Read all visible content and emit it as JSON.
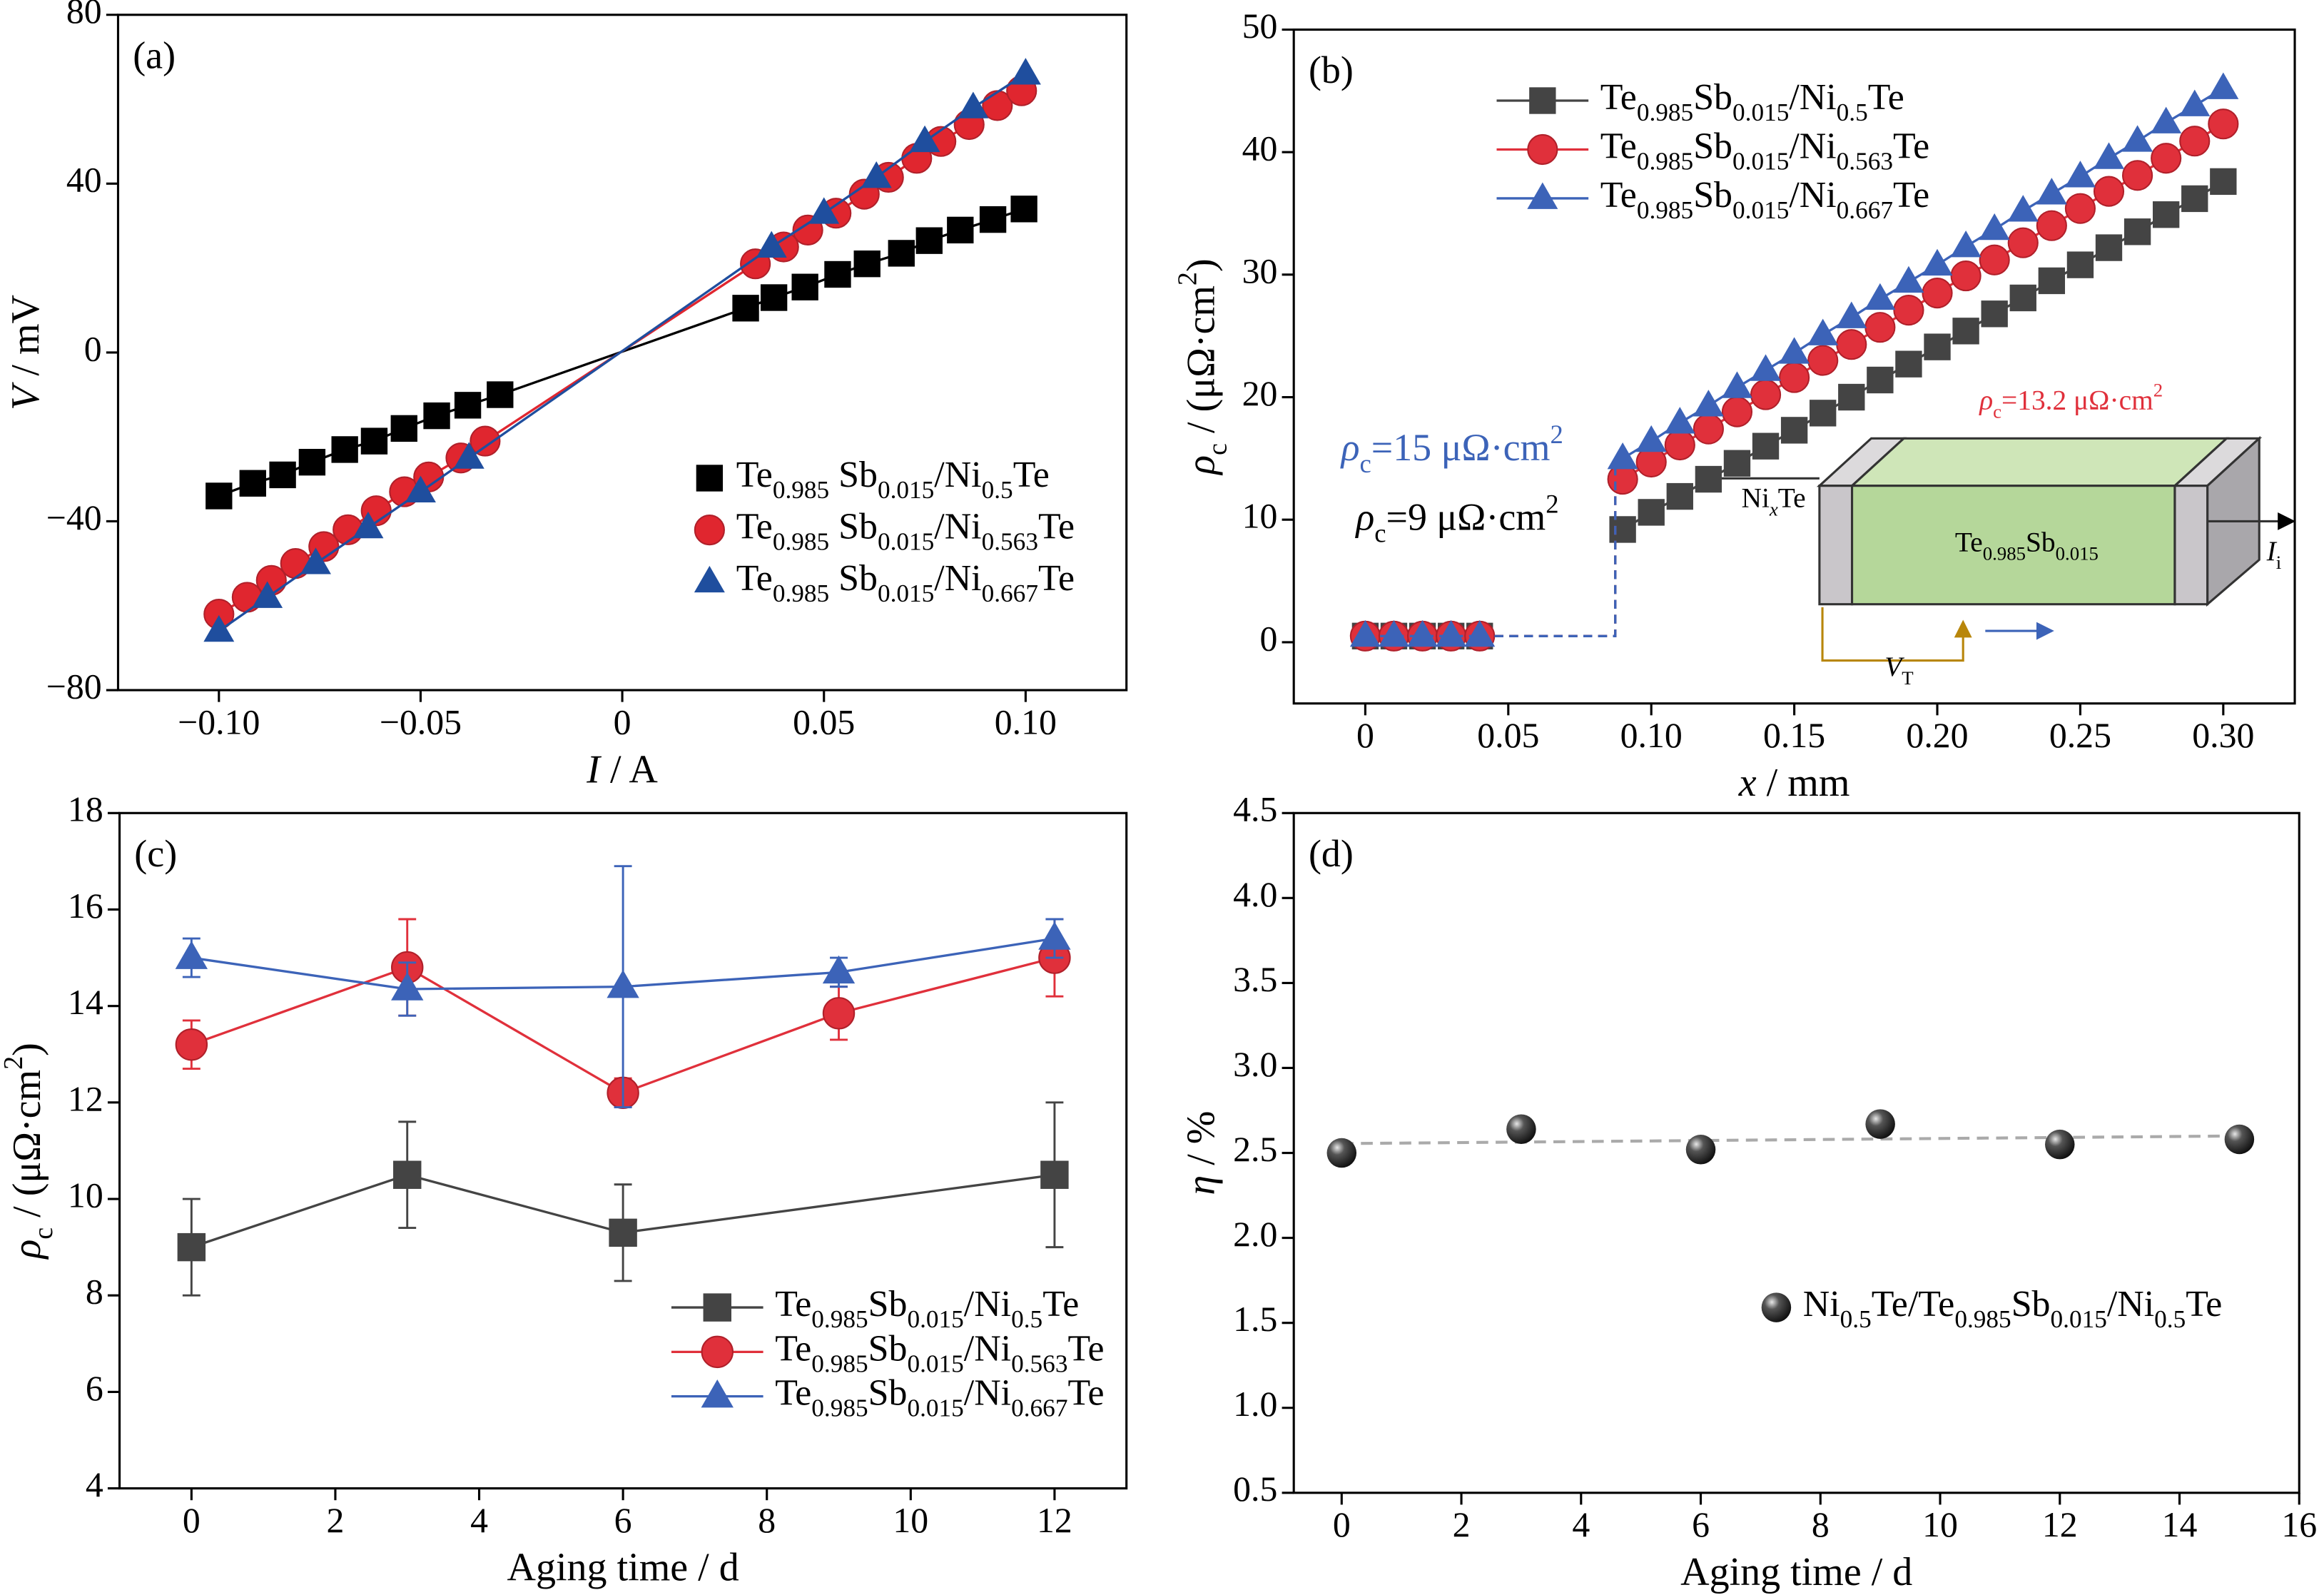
{
  "chart_data": [
    {
      "type": "line",
      "label": "(a)",
      "xlabel": "I / A",
      "ylabel": "V / mV",
      "xlim": [
        -0.125,
        0.125
      ],
      "ylim": [
        -80,
        80
      ],
      "xticks": [
        {
          "value": -0.1,
          "label": "−0.10"
        },
        {
          "value": -0.05,
          "label": "−0.05"
        },
        0,
        0.05,
        {
          "value": 0.1,
          "label": "0.10"
        }
      ],
      "yticks": [
        {
          "value": -80,
          "label": "−80"
        },
        {
          "value": -40,
          "label": "−40"
        },
        0,
        40,
        80
      ],
      "legend": "lower right",
      "legend_line": false,
      "series": [
        {
          "name": "Te0.985 Sb0.015/Ni0.5Te",
          "color": "#000000",
          "marker": "square",
          "x": [
            -0.1,
            -0.0916,
            -0.0842,
            -0.0769,
            -0.0688,
            -0.0615,
            -0.0541,
            -0.046,
            -0.0383,
            -0.0303,
            0.0306,
            0.0376,
            0.0453,
            0.0534,
            0.0607,
            0.0692,
            0.0761,
            0.0838,
            0.0919,
            0.0996
          ],
          "values": [
            -34,
            -31,
            -29,
            -26,
            -23,
            -21,
            -18,
            -15,
            -12.5,
            -10,
            10.5,
            13,
            15.5,
            18.5,
            21,
            23.5,
            26.5,
            29,
            31.5,
            34
          ]
        },
        {
          "name": "Te0.985 Sb0.015/Ni0.563Te",
          "color": "#e0262f",
          "marker": "circle",
          "x": [
            -0.1,
            -0.093,
            -0.087,
            -0.081,
            -0.074,
            -0.068,
            -0.061,
            -0.054,
            -0.048,
            -0.04,
            -0.034,
            0.033,
            0.04,
            0.046,
            0.053,
            0.06,
            0.066,
            0.073,
            0.079,
            0.086,
            0.093,
            0.099
          ],
          "values": [
            -62,
            -58,
            -54,
            -50,
            -46,
            -42,
            -37.5,
            -33,
            -29.5,
            -25,
            -21,
            21,
            25,
            29,
            33,
            37.5,
            41.5,
            46,
            50,
            54,
            58.5,
            62
          ]
        },
        {
          "name": "Te0.985 Sb0.015/Ni0.667Te",
          "color": "#1f4e9e",
          "marker": "triangle",
          "x": [
            -0.1,
            -0.088,
            -0.076,
            -0.063,
            -0.05,
            -0.038,
            0.037,
            0.05,
            0.063,
            0.075,
            0.087,
            0.1
          ],
          "values": [
            -66,
            -58,
            -50,
            -41.5,
            -33,
            -25,
            25,
            33,
            41.5,
            50,
            58,
            66
          ]
        }
      ]
    },
    {
      "type": "line",
      "label": "(b)",
      "xlabel": "x / mm",
      "ylabel": "ρc / (μΩ·cm2)",
      "xlim": [
        -0.025,
        0.325
      ],
      "ylim": [
        -5,
        50
      ],
      "xticks": [
        0,
        0.05,
        {
          "value": 0.1,
          "label": "0.10"
        },
        0.15,
        {
          "value": 0.2,
          "label": "0.20"
        },
        0.25,
        {
          "value": 0.3,
          "label": "0.30"
        }
      ],
      "yticks": [
        0,
        10,
        20,
        30,
        40,
        50
      ],
      "legend": "upper left",
      "legend_line": true,
      "dashed_jump": true,
      "annotations": [
        "ρc=15 μΩ·cm2",
        "ρc=9 μΩ·cm2",
        "ρc=13.2 μΩ·cm2",
        "NixTe",
        "Te0.985Sb0.015",
        "Ii",
        "VT"
      ],
      "series": [
        {
          "name": "Te0.985Sb0.015/Ni0.5Te",
          "color": "#444444",
          "marker": "square",
          "x": [
            0,
            0.01,
            0.02,
            0.03,
            0.04,
            0.09,
            0.1,
            0.11,
            0.12,
            0.13,
            0.14,
            0.15,
            0.16,
            0.17,
            0.18,
            0.19,
            0.2,
            0.21,
            0.22,
            0.23,
            0.24,
            0.25,
            0.26,
            0.27,
            0.28,
            0.29,
            0.3
          ],
          "values": [
            0.5,
            0.5,
            0.5,
            0.5,
            0.5,
            9.2,
            10.6,
            11.9,
            13.3,
            14.6,
            16.0,
            17.3,
            18.7,
            20.0,
            21.4,
            22.7,
            24.1,
            25.4,
            26.8,
            28.1,
            29.5,
            30.8,
            32.2,
            33.5,
            34.9,
            36.2,
            37.6
          ]
        },
        {
          "name": "Te0.985Sb0.015/Ni0.563Te",
          "color": "#e0303b",
          "marker": "circle",
          "x": [
            0,
            0.01,
            0.02,
            0.03,
            0.04,
            0.09,
            0.1,
            0.11,
            0.12,
            0.13,
            0.14,
            0.15,
            0.16,
            0.17,
            0.18,
            0.19,
            0.2,
            0.21,
            0.22,
            0.23,
            0.24,
            0.25,
            0.26,
            0.27,
            0.28,
            0.29,
            0.3
          ],
          "values": [
            0.5,
            0.5,
            0.5,
            0.5,
            0.5,
            13.3,
            14.7,
            16.1,
            17.4,
            18.8,
            20.2,
            21.6,
            23.0,
            24.3,
            25.7,
            27.1,
            28.5,
            29.9,
            31.2,
            32.6,
            34.0,
            35.4,
            36.8,
            38.1,
            39.5,
            40.9,
            42.3
          ]
        },
        {
          "name": "Te0.985Sb0.015/Ni0.667Te",
          "color": "#3c63b8",
          "marker": "triangle",
          "x": [
            0,
            0.01,
            0.02,
            0.03,
            0.04,
            0.09,
            0.1,
            0.11,
            0.12,
            0.13,
            0.14,
            0.15,
            0.16,
            0.17,
            0.18,
            0.19,
            0.2,
            0.21,
            0.22,
            0.23,
            0.24,
            0.25,
            0.26,
            0.27,
            0.28,
            0.29,
            0.3
          ],
          "values": [
            0.5,
            0.5,
            0.5,
            0.5,
            0.5,
            15.0,
            16.4,
            17.9,
            19.3,
            20.8,
            22.2,
            23.6,
            25.1,
            26.5,
            28.0,
            29.4,
            30.8,
            32.3,
            33.7,
            35.2,
            36.6,
            38.0,
            39.5,
            40.9,
            42.4,
            43.8,
            45.2
          ]
        }
      ]
    },
    {
      "type": "line",
      "label": "(c)",
      "xlabel": "Aging time / d",
      "ylabel": "ρc / (μΩ·cm2)",
      "xlim": [
        -1,
        13
      ],
      "ylim": [
        4,
        18
      ],
      "xticks": [
        0,
        2,
        4,
        6,
        8,
        10,
        12
      ],
      "yticks": [
        4,
        6,
        8,
        10,
        12,
        14,
        16,
        18
      ],
      "legend": "lower right",
      "legend_line": true,
      "series": [
        {
          "name": "Te0.985Sb0.015/Ni0.5Te",
          "color": "#444444",
          "marker": "square",
          "x": [
            0,
            3,
            6,
            12
          ],
          "values": [
            9.0,
            10.5,
            9.3,
            10.5
          ],
          "errors": [
            1.0,
            1.1,
            1.0,
            1.5
          ]
        },
        {
          "name": "Te0.985Sb0.015/Ni0.563Te",
          "color": "#e0303b",
          "marker": "circle",
          "x": [
            0,
            3,
            6,
            9,
            12
          ],
          "values": [
            13.2,
            14.8,
            12.2,
            13.85,
            15.0
          ],
          "errors": [
            0.5,
            1.0,
            0.3,
            0.55,
            0.8
          ]
        },
        {
          "name": "Te0.985Sb0.015/Ni0.667Te",
          "color": "#3c63b8",
          "marker": "triangle",
          "x": [
            0,
            3,
            6,
            9,
            12
          ],
          "values": [
            15.0,
            14.35,
            14.4,
            14.7,
            15.4
          ],
          "errors": [
            0.4,
            0.55,
            2.5,
            0.3,
            0.4
          ]
        }
      ]
    },
    {
      "type": "scatter",
      "label": "(d)",
      "xlabel": "Aging time / d",
      "ylabel": "η / %",
      "xlim": [
        -0.8,
        16
      ],
      "ylim": [
        0.5,
        4.5
      ],
      "xticks": [
        0,
        2,
        4,
        6,
        8,
        10,
        12,
        14,
        16
      ],
      "yticks": [
        0.5,
        {
          "value": 1,
          "label": "1.0"
        },
        1.5,
        {
          "value": 2,
          "label": "2.0"
        },
        2.5,
        {
          "value": 3,
          "label": "3.0"
        },
        3.5,
        {
          "value": 4,
          "label": "4.0"
        },
        4.5
      ],
      "legend": "lower right",
      "legend_line": false,
      "fit": {
        "x": [
          0,
          15
        ],
        "values": [
          2.555,
          2.6
        ],
        "color": "#aaaaaa"
      },
      "series": [
        {
          "name": "Ni0.5Te/Te0.985Sb0.015/Ni0.5Te",
          "color": "#333333",
          "marker": "sphere",
          "x": [
            0,
            3,
            6,
            9,
            12,
            15
          ],
          "values": [
            2.5,
            2.64,
            2.52,
            2.67,
            2.55,
            2.58
          ]
        }
      ]
    }
  ]
}
